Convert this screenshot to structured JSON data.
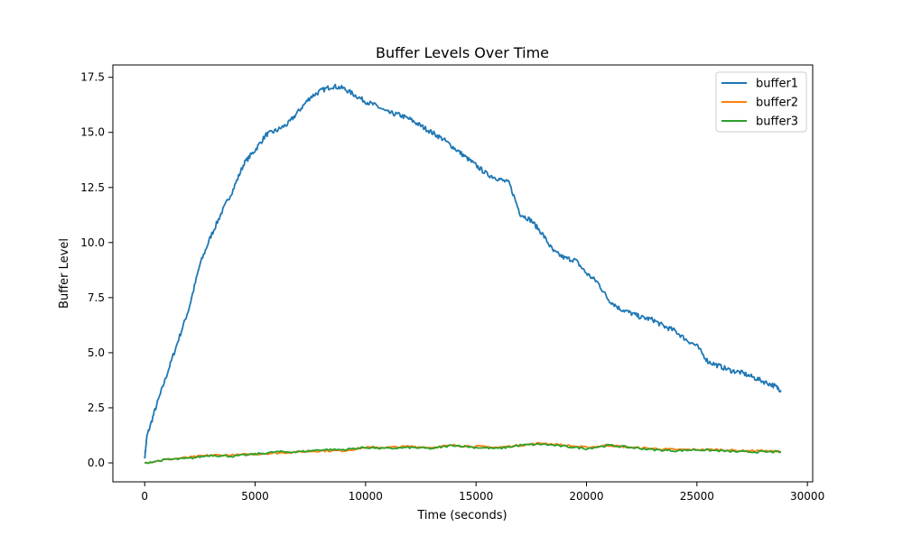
{
  "chart_data": {
    "type": "line",
    "title": "Buffer Levels Over Time",
    "xlabel": "Time (seconds)",
    "ylabel": "Buffer Level",
    "xlim": [
      -1440,
      30240
    ],
    "ylim": [
      -0.86,
      18.06
    ],
    "x_ticks": [
      0,
      5000,
      10000,
      15000,
      20000,
      25000,
      30000
    ],
    "x_tick_labels": [
      "0",
      "5000",
      "10000",
      "15000",
      "20000",
      "25000",
      "30000"
    ],
    "y_ticks": [
      0,
      2.5,
      5,
      7.5,
      10,
      12.5,
      15,
      17.5
    ],
    "y_tick_labels": [
      "0.0",
      "2.5",
      "5.0",
      "7.5",
      "10.0",
      "12.5",
      "15.0",
      "17.5"
    ],
    "grid": false,
    "legend": "top-right",
    "series": [
      {
        "name": "buffer1",
        "color": "#1f77b4",
        "x": [
          0,
          100,
          500,
          1000,
          1500,
          2000,
          2500,
          3000,
          3500,
          4000,
          4500,
          5000,
          5500,
          6000,
          6500,
          7000,
          7500,
          8000,
          8500,
          9000,
          9500,
          10000,
          10500,
          11000,
          11500,
          12000,
          12500,
          13000,
          13500,
          14000,
          14500,
          15000,
          15500,
          16000,
          16500,
          17000,
          17500,
          18000,
          18500,
          19000,
          19500,
          20000,
          20500,
          21000,
          21500,
          22000,
          22500,
          23000,
          23500,
          24000,
          24500,
          25000,
          25500,
          26000,
          26500,
          27000,
          27500,
          28000,
          28500,
          28800
        ],
        "y": [
          0.2,
          1.2,
          2.5,
          4.0,
          5.5,
          7.0,
          9.0,
          10.3,
          11.4,
          12.4,
          13.6,
          14.2,
          14.9,
          15.1,
          15.4,
          16.0,
          16.6,
          16.9,
          17.1,
          17.0,
          16.7,
          16.4,
          16.2,
          15.9,
          15.8,
          15.6,
          15.3,
          15.0,
          14.7,
          14.3,
          13.9,
          13.5,
          13.1,
          12.9,
          12.7,
          11.3,
          11.0,
          10.4,
          9.6,
          9.3,
          9.2,
          8.6,
          8.2,
          7.4,
          7.0,
          6.8,
          6.6,
          6.5,
          6.2,
          6.0,
          5.6,
          5.3,
          4.6,
          4.4,
          4.2,
          4.1,
          3.9,
          3.7,
          3.5,
          3.3
        ]
      },
      {
        "name": "buffer2",
        "color": "#ff7f0e",
        "x": [
          0,
          1000,
          2000,
          3000,
          4000,
          5000,
          6000,
          7000,
          8000,
          9000,
          10000,
          11000,
          12000,
          13000,
          14000,
          15000,
          16000,
          17000,
          18000,
          19000,
          20000,
          21000,
          22000,
          23000,
          24000,
          25000,
          26000,
          27000,
          28000,
          28800
        ],
        "y": [
          0.0,
          0.15,
          0.25,
          0.35,
          0.35,
          0.4,
          0.45,
          0.5,
          0.55,
          0.55,
          0.7,
          0.7,
          0.75,
          0.7,
          0.8,
          0.75,
          0.7,
          0.8,
          0.9,
          0.8,
          0.7,
          0.8,
          0.7,
          0.65,
          0.6,
          0.6,
          0.6,
          0.55,
          0.55,
          0.5
        ]
      },
      {
        "name": "buffer3",
        "color": "#2ca02c",
        "x": [
          0,
          1000,
          2000,
          3000,
          4000,
          5000,
          6000,
          7000,
          8000,
          9000,
          10000,
          11000,
          12000,
          13000,
          14000,
          15000,
          16000,
          17000,
          18000,
          19000,
          20000,
          21000,
          22000,
          23000,
          24000,
          25000,
          26000,
          27000,
          28000,
          28800
        ],
        "y": [
          0.0,
          0.15,
          0.2,
          0.35,
          0.3,
          0.4,
          0.5,
          0.5,
          0.6,
          0.6,
          0.7,
          0.65,
          0.7,
          0.65,
          0.8,
          0.7,
          0.65,
          0.8,
          0.85,
          0.75,
          0.65,
          0.8,
          0.7,
          0.6,
          0.55,
          0.6,
          0.55,
          0.5,
          0.5,
          0.5
        ]
      }
    ]
  }
}
